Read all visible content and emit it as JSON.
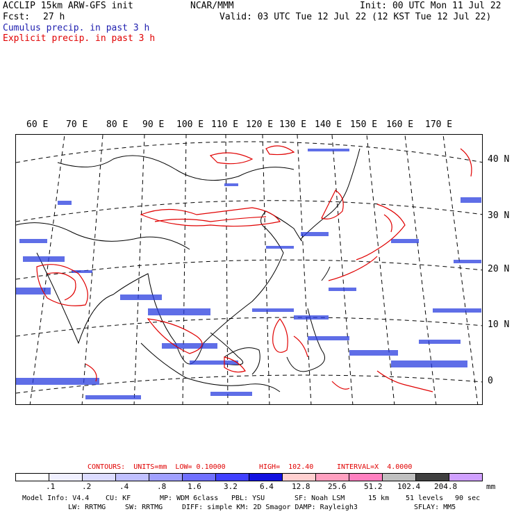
{
  "header": {
    "title": "ACCLIP 15km ARW-GFS init",
    "org": "NCAR/MMM",
    "init": "Init: 00 UTC Mon 11 Jul 22",
    "fcst_label": "Fcst:",
    "fcst_value": "27 h",
    "valid": "Valid: 03 UTC Tue 12 Jul 22 (12 KST Tue 12 Jul 22)",
    "cumulus": "Cumulus precip. in past 3 h",
    "explicit": "Explicit precip. in past 3 h"
  },
  "map": {
    "lon_labels": [
      "60 E",
      "70 E",
      "80 E",
      "90 E",
      "100 E",
      "110 E",
      "120 E",
      "130 E",
      "140 E",
      "150 E",
      "160 E",
      "170 E"
    ],
    "lat_labels": [
      "40 N",
      "30 N",
      "20 N",
      "10 N",
      "0"
    ],
    "colors": {
      "cumulus": "#2a3ee0",
      "explicit": "#e00000",
      "coast": "#000000"
    }
  },
  "legend": {
    "contours": "CONTOURS:  UNITS=mm  LOW= 0.10000",
    "high": "HIGH=  102.40",
    "interval": "INTERVAL=X  4.0000",
    "ticks": [
      ".1",
      ".2",
      ".4",
      ".8",
      "1.6",
      "3.2",
      "6.4",
      "12.8",
      "25.6",
      "51.2",
      "102.4",
      "204.8"
    ],
    "unit": "mm",
    "colors": [
      "#ffffff",
      "#f0f0ff",
      "#dcdcff",
      "#c0c0ff",
      "#a0a0ff",
      "#7070ff",
      "#4040ff",
      "#1010e0",
      "#ffd0d0",
      "#ffa0c0",
      "#ff80c0",
      "#c0c0c0",
      "#404040",
      "#d0a0ff"
    ]
  },
  "footer": {
    "row1": [
      "Model Info: V4.4",
      "CU: KF",
      "MP: WDM 6class",
      "PBL: YSU",
      "SF: Noah LSM",
      "15 km",
      "51 levels",
      "90 sec"
    ],
    "row2": [
      "LW: RRTMG",
      "SW: RRTMG",
      "DIFF: simple KM: 2D Smagor DAMP: Rayleigh3",
      "SFLAY: MM5"
    ]
  }
}
